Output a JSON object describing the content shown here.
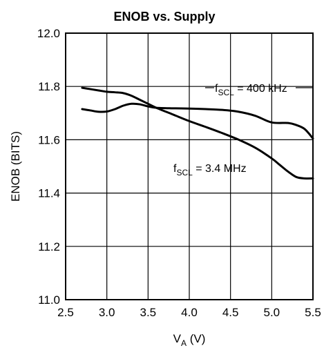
{
  "chart_data": {
    "type": "line",
    "title": "ENOB vs. Supply",
    "xlabel": "V",
    "xlabel_sub": "A",
    "xlabel_unit": " (V)",
    "ylabel": "ENOB (BITS)",
    "xlim": [
      2.5,
      5.5
    ],
    "ylim": [
      11.0,
      12.0
    ],
    "x_ticks": [
      "2.5",
      "3.0",
      "3.5",
      "4.0",
      "4.5",
      "5.0",
      "5.5"
    ],
    "y_ticks": [
      "11.0",
      "11.2",
      "11.4",
      "11.6",
      "11.8",
      "12.0"
    ],
    "grid": true,
    "series": [
      {
        "name": "fSCL = 400 kHz",
        "label_main": "f",
        "label_sub": "SCL",
        "label_value": " = 400 kHz",
        "x": [
          2.7,
          2.8,
          2.9,
          3.0,
          3.1,
          3.2,
          3.3,
          3.4,
          3.5,
          3.6,
          3.8,
          4.0,
          4.2,
          4.4,
          4.6,
          4.8,
          5.0,
          5.2,
          5.3,
          5.4,
          5.5
        ],
        "y": [
          11.715,
          11.71,
          11.705,
          11.706,
          11.715,
          11.728,
          11.735,
          11.733,
          11.725,
          11.72,
          11.718,
          11.717,
          11.715,
          11.712,
          11.705,
          11.69,
          11.665,
          11.663,
          11.655,
          11.64,
          11.605
        ]
      },
      {
        "name": "fSCL = 3.4 MHz",
        "label_main": "f",
        "label_sub": "SCL",
        "label_value": " = 3.4 MHz",
        "x": [
          2.7,
          2.8,
          2.9,
          3.0,
          3.1,
          3.2,
          3.3,
          3.4,
          3.5,
          3.6,
          3.8,
          4.0,
          4.2,
          4.4,
          4.6,
          4.8,
          5.0,
          5.1,
          5.2,
          5.3,
          5.4,
          5.5
        ],
        "y": [
          11.795,
          11.79,
          11.785,
          11.78,
          11.778,
          11.775,
          11.765,
          11.75,
          11.735,
          11.72,
          11.695,
          11.67,
          11.648,
          11.625,
          11.6,
          11.57,
          11.53,
          11.505,
          11.48,
          11.46,
          11.455,
          11.455
        ]
      }
    ]
  }
}
